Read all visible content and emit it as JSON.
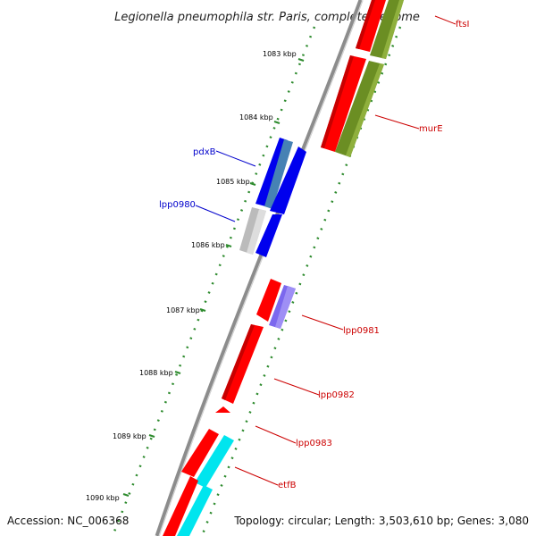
{
  "title": "Legionella pneumophila str. Paris, complete genome",
  "footer": {
    "accession": "Accession: NC_006368",
    "summary": "Topology: circular; Length: 3,503,610 bp; Genes: 3,080"
  },
  "ticks": [
    {
      "label": "1083 kbp"
    },
    {
      "label": "1084 kbp"
    },
    {
      "label": "1085 kbp"
    },
    {
      "label": "1086 kbp"
    },
    {
      "label": "1087 kbp"
    },
    {
      "label": "1088 kbp"
    },
    {
      "label": "1089 kbp"
    },
    {
      "label": "1090 kbp"
    }
  ],
  "genes": [
    {
      "name": "ftsI",
      "color": "#cc0000"
    },
    {
      "name": "murE",
      "color": "#cc0000"
    },
    {
      "name": "pdxB",
      "color": "#0000cc"
    },
    {
      "name": "lpp0980",
      "color": "#0000cc"
    },
    {
      "name": "lpp0981",
      "color": "#cc0000"
    },
    {
      "name": "lpp0982",
      "color": "#cc0000"
    },
    {
      "name": "lpp0983",
      "color": "#cc0000"
    },
    {
      "name": "etfB",
      "color": "#cc0000"
    }
  ],
  "colors": {
    "backbone": "#8c8c8c",
    "tick": "#2e8b2e",
    "red_feature": "#ff0000",
    "olive_feature": "#6b8e23",
    "blue_feature": "#0000ee",
    "steel_feature": "#4682b4",
    "grey_feature": "#bbbbbb",
    "violet_feature": "#7b68ee",
    "cyan_feature": "#00e5ee"
  }
}
